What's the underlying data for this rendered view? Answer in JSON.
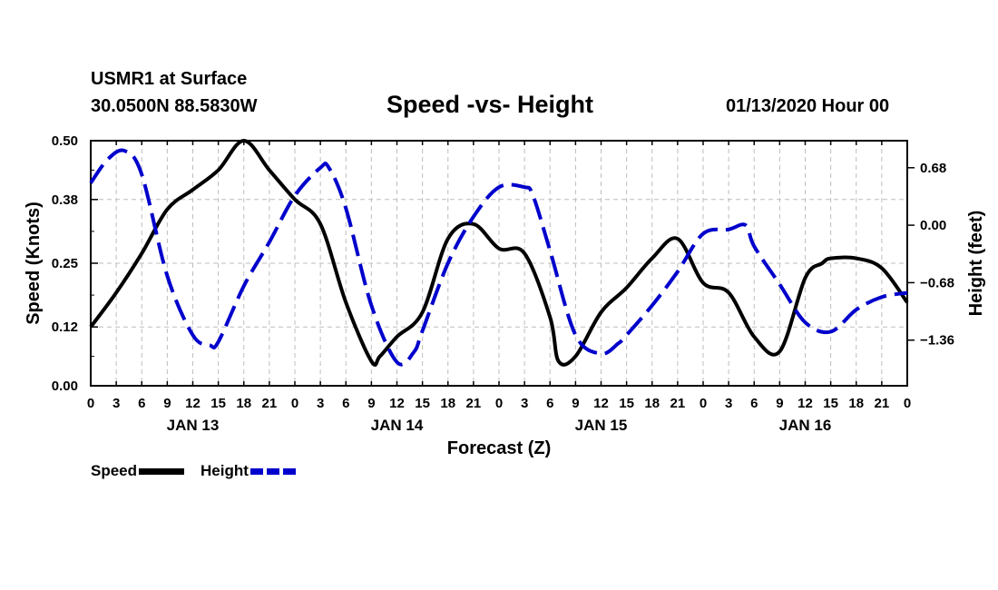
{
  "header": {
    "station": "USMR1 at Surface",
    "coords": "30.0500N 88.5830W",
    "title": "Speed -vs- Height",
    "run_time": "01/13/2020 Hour 00"
  },
  "legend": {
    "speed_label": "Speed",
    "height_label": "Height"
  },
  "chart_data": {
    "type": "line",
    "title": "Speed -vs- Height",
    "xlabel": "Forecast (Z)",
    "ylabel": "Speed (Knots)",
    "y2label": "Height (feet)",
    "xlim": [
      0,
      96
    ],
    "ylim": [
      0,
      0.5
    ],
    "y2lim": [
      -1.9,
      1.0
    ],
    "x_ticks": [
      0,
      3,
      6,
      9,
      12,
      15,
      18,
      21,
      24,
      27,
      30,
      33,
      36,
      39,
      42,
      45,
      48,
      51,
      54,
      57,
      60,
      63,
      66,
      69,
      72,
      75,
      78,
      81,
      84,
      87,
      90,
      93,
      96
    ],
    "x_tick_labels": [
      "0",
      "3",
      "6",
      "9",
      "12",
      "15",
      "18",
      "21",
      "0",
      "3",
      "6",
      "9",
      "12",
      "15",
      "18",
      "21",
      "0",
      "3",
      "6",
      "9",
      "12",
      "15",
      "18",
      "21",
      "0",
      "3",
      "6",
      "9",
      "12",
      "15",
      "18",
      "21",
      "0"
    ],
    "date_labels": [
      {
        "x": 12,
        "label": "JAN 13"
      },
      {
        "x": 36,
        "label": "JAN 14"
      },
      {
        "x": 60,
        "label": "JAN 15"
      },
      {
        "x": 84,
        "label": "JAN 16"
      }
    ],
    "y_ticks": [
      0.0,
      0.12,
      0.25,
      0.38,
      0.5
    ],
    "y_tick_labels": [
      "0.00",
      "0.12",
      "0.25",
      "0.38",
      "0.50"
    ],
    "y2_ticks": [
      0.68,
      0.0,
      -0.68,
      -1.36
    ],
    "y2_tick_labels": [
      "0.68",
      "0.00",
      "−0.68",
      "−1.36"
    ],
    "grid": true,
    "legend_position": "bottom-left",
    "series": [
      {
        "name": "Speed",
        "axis": "left",
        "color": "#000000",
        "style": "solid",
        "x": [
          0,
          3,
          6,
          9,
          12,
          15,
          18,
          21,
          24,
          27,
          30,
          33,
          34,
          36,
          39,
          42,
          45,
          48,
          51,
          54,
          55,
          57,
          60,
          63,
          66,
          69,
          72,
          75,
          78,
          81,
          84,
          86,
          87,
          90,
          93,
          96
        ],
        "y": [
          0.12,
          0.19,
          0.27,
          0.36,
          0.4,
          0.44,
          0.5,
          0.44,
          0.38,
          0.33,
          0.17,
          0.05,
          0.06,
          0.1,
          0.15,
          0.3,
          0.33,
          0.28,
          0.27,
          0.14,
          0.05,
          0.06,
          0.15,
          0.2,
          0.26,
          0.3,
          0.21,
          0.19,
          0.1,
          0.07,
          0.22,
          0.25,
          0.26,
          0.26,
          0.24,
          0.17
        ]
      },
      {
        "name": "Height",
        "axis": "right",
        "color": "#0000cc",
        "style": "dashed",
        "x": [
          0,
          2,
          4,
          6,
          9,
          12,
          14,
          15,
          18,
          21,
          24,
          27,
          28,
          30,
          33,
          36,
          38,
          39,
          42,
          45,
          48,
          51,
          52,
          54,
          57,
          60,
          62,
          63,
          66,
          69,
          72,
          75,
          77,
          78,
          81,
          84,
          87,
          90,
          93,
          96
        ],
        "y": [
          0.5,
          0.78,
          0.88,
          0.6,
          -0.6,
          -1.3,
          -1.42,
          -1.38,
          -0.72,
          -0.2,
          0.35,
          0.68,
          0.68,
          0.2,
          -0.95,
          -1.62,
          -1.5,
          -1.25,
          -0.45,
          0.1,
          0.45,
          0.45,
          0.35,
          -0.3,
          -1.3,
          -1.52,
          -1.4,
          -1.3,
          -0.95,
          -0.55,
          -0.1,
          -0.05,
          0.0,
          -0.25,
          -0.7,
          -1.15,
          -1.26,
          -1.0,
          -0.85,
          -0.8
        ]
      }
    ]
  }
}
